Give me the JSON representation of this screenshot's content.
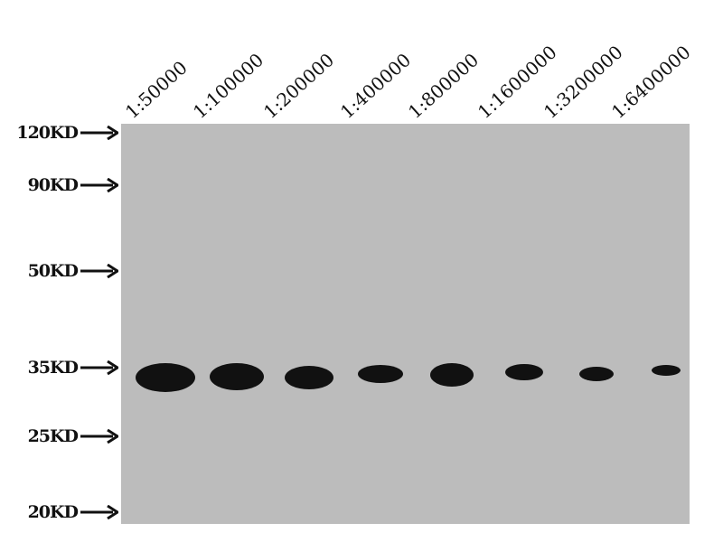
{
  "lanes": [
    "1:50000",
    "1:100000",
    "1:200000",
    "1:400000",
    "1:800000",
    "1:1600000",
    "1:3200000",
    "1:6400000"
  ],
  "markers": [
    "120KD",
    "90KD",
    "50KD",
    "35KD",
    "25KD",
    "20KD"
  ],
  "colors": {
    "membrane": "#bcbcbc",
    "band": "#111111"
  }
}
